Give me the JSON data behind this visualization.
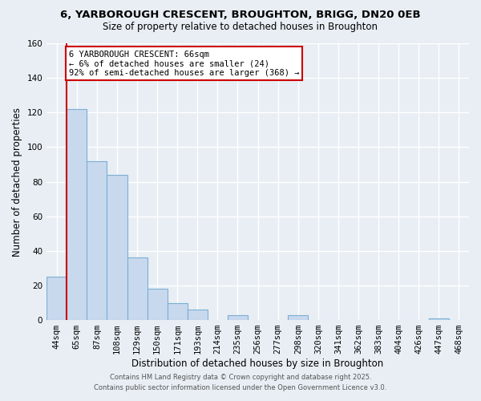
{
  "title1": "6, YARBOROUGH CRESCENT, BROUGHTON, BRIGG, DN20 0EB",
  "title2": "Size of property relative to detached houses in Broughton",
  "xlabel": "Distribution of detached houses by size in Broughton",
  "ylabel": "Number of detached properties",
  "bar_labels": [
    "44sqm",
    "65sqm",
    "87sqm",
    "108sqm",
    "129sqm",
    "150sqm",
    "171sqm",
    "193sqm",
    "214sqm",
    "235sqm",
    "256sqm",
    "277sqm",
    "298sqm",
    "320sqm",
    "341sqm",
    "362sqm",
    "383sqm",
    "404sqm",
    "426sqm",
    "447sqm",
    "468sqm"
  ],
  "bar_heights": [
    25,
    122,
    92,
    84,
    36,
    18,
    10,
    6,
    0,
    3,
    0,
    0,
    3,
    0,
    0,
    0,
    0,
    0,
    0,
    1,
    0
  ],
  "bar_color": "#c8d9ee",
  "bar_edge_color": "#7bafd4",
  "vline_color": "#cc0000",
  "ylim": [
    0,
    160
  ],
  "yticks": [
    0,
    20,
    40,
    60,
    80,
    100,
    120,
    140,
    160
  ],
  "annotation_title": "6 YARBOROUGH CRESCENT: 66sqm",
  "annotation_line1": "← 6% of detached houses are smaller (24)",
  "annotation_line2": "92% of semi-detached houses are larger (368) →",
  "annotation_box_facecolor": "#ffffff",
  "annotation_box_edgecolor": "#cc0000",
  "footnote1": "Contains HM Land Registry data © Crown copyright and database right 2025.",
  "footnote2": "Contains public sector information licensed under the Open Government Licence v3.0.",
  "bg_color": "#e8eef4",
  "grid_color": "#ffffff",
  "title1_fontsize": 9.5,
  "title2_fontsize": 8.5,
  "xlabel_fontsize": 8.5,
  "ylabel_fontsize": 8.5,
  "tick_fontsize": 7.5,
  "annot_fontsize": 7.5,
  "footnote_fontsize": 6.0
}
